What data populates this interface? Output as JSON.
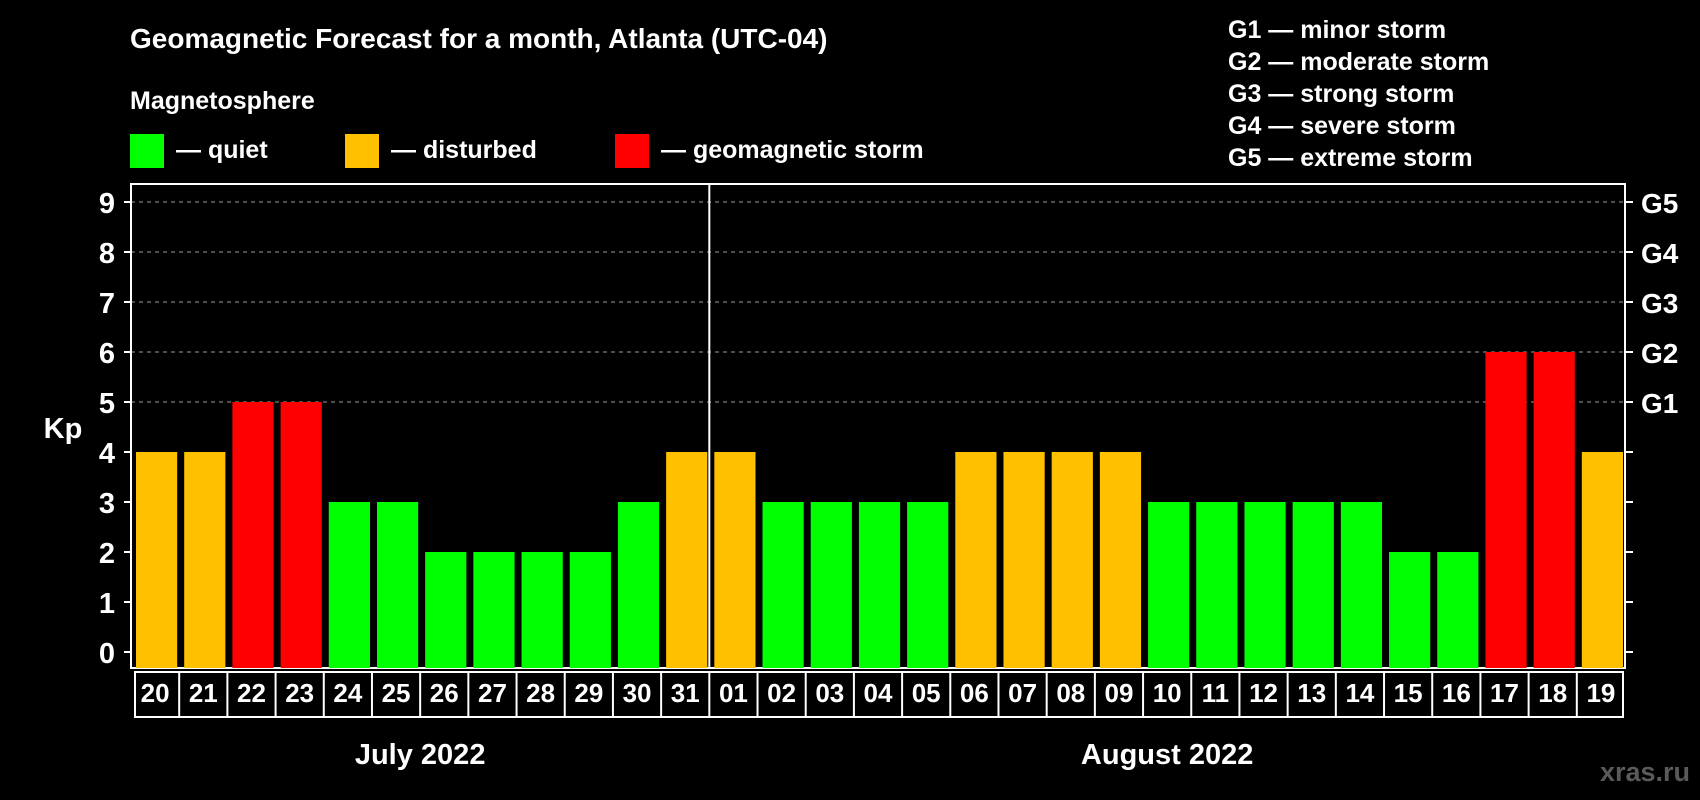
{
  "chart_data": {
    "type": "bar",
    "title": "Geomagnetic Forecast for a month, Atlanta (UTC-04)",
    "ylabel": "Kp",
    "ylim": [
      0,
      9
    ],
    "y_ticks": [
      "0",
      "1",
      "2",
      "3",
      "4",
      "5",
      "6",
      "7",
      "8",
      "9"
    ],
    "right_axis_labels": [
      {
        "kp": 5,
        "label": "G1"
      },
      {
        "kp": 6,
        "label": "G2"
      },
      {
        "kp": 7,
        "label": "G3"
      },
      {
        "kp": 8,
        "label": "G4"
      },
      {
        "kp": 9,
        "label": "G5"
      }
    ],
    "grid": "dashed horizontal lines from Kp 5 to 9",
    "categories": [
      "20",
      "21",
      "22",
      "23",
      "24",
      "25",
      "26",
      "27",
      "28",
      "29",
      "30",
      "31",
      "01",
      "02",
      "03",
      "04",
      "05",
      "06",
      "07",
      "08",
      "09",
      "10",
      "11",
      "12",
      "13",
      "14",
      "15",
      "16",
      "17",
      "18",
      "19"
    ],
    "values": [
      4,
      4,
      5,
      5,
      3,
      3,
      2,
      2,
      2,
      2,
      3,
      4,
      4,
      3,
      3,
      3,
      3,
      4,
      4,
      4,
      4,
      3,
      3,
      3,
      3,
      3,
      2,
      2,
      6,
      6,
      4
    ],
    "months": [
      {
        "label": "July 2022",
        "days": 12
      },
      {
        "label": "August 2022",
        "days": 19
      }
    ],
    "legend_title": "Magnetosphere",
    "legend": [
      {
        "label": "— quiet",
        "color": "#00ff00"
      },
      {
        "label": "— disturbed",
        "color": "#ffc000"
      },
      {
        "label": "— geomagnetic storm",
        "color": "#ff0000"
      }
    ],
    "storm_scale": [
      "G1 — minor storm",
      "G2 — moderate storm",
      "G3 — strong storm",
      "G4 — severe storm",
      "G5 — extreme storm"
    ],
    "watermark": "xras.ru",
    "colors": {
      "quiet": "#00ff00",
      "disturbed": "#ffc000",
      "storm": "#ff0000",
      "background": "#000000"
    }
  }
}
